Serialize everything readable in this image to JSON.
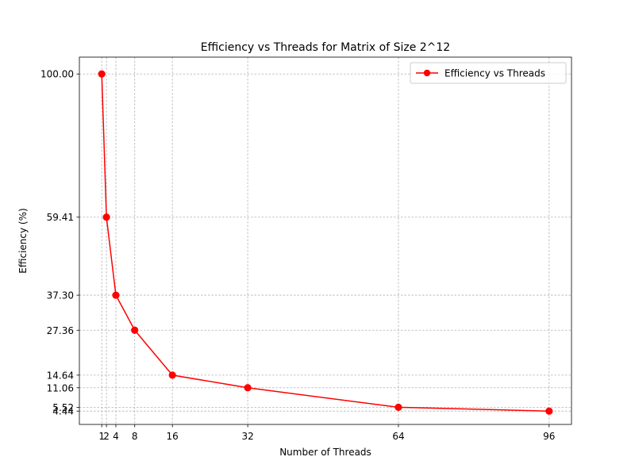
{
  "chart_data": {
    "type": "line",
    "title": "Efficiency vs Threads for Matrix of Size 2^12",
    "xlabel": "Number of Threads",
    "ylabel": "Efficiency (%)",
    "x": [
      1,
      2,
      4,
      8,
      16,
      32,
      64,
      96
    ],
    "x_tick_labels": [
      "1",
      "2",
      "4",
      "8",
      "16",
      "32",
      "64",
      "96"
    ],
    "y_tick_values": [
      100.0,
      59.41,
      37.3,
      27.36,
      14.64,
      11.06,
      5.52,
      4.44
    ],
    "y_tick_labels": [
      "100.00",
      "59.41",
      "37.30",
      "27.36",
      "14.64",
      "11.06",
      "5.52",
      "4.44"
    ],
    "series": [
      {
        "name": "Efficiency vs Threads",
        "values": [
          100.0,
          59.41,
          37.3,
          27.36,
          14.64,
          11.06,
          5.52,
          4.44
        ],
        "color": "#ff0000",
        "marker": "circle"
      }
    ],
    "xlim": [
      -3.75,
      100.75
    ],
    "ylim": [
      0.662,
      104.778
    ],
    "grid": true,
    "legend_position": "upper-right"
  }
}
